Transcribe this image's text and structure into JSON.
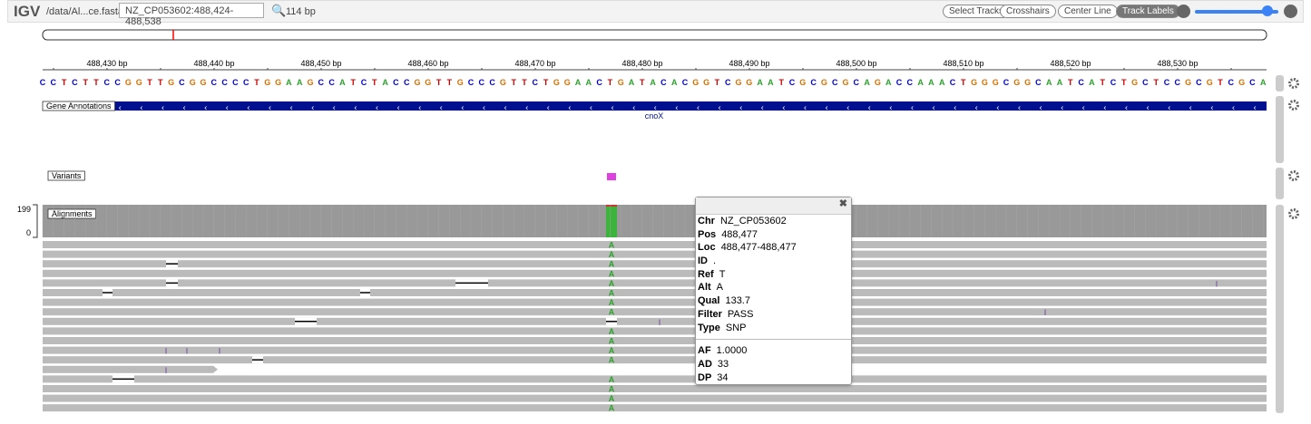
{
  "toolbar": {
    "logo": "IGV",
    "file": "/data/Al...ce.fasta",
    "locus": "NZ_CP053602:488,424-488,538",
    "width": "114 bp",
    "buttons": [
      "Select Tracks",
      "Crosshairs",
      "Center Line",
      "Track Labels"
    ]
  },
  "ruler": {
    "ticks": [
      "488,430 bp",
      "488,440 bp",
      "488,450 bp",
      "488,460 bp",
      "488,470 bp",
      "488,480 bp",
      "488,490 bp",
      "488,500 bp",
      "488,510 bp",
      "488,520 bp",
      "488,530 bp"
    ]
  },
  "sequence": "CCTCTTCCGGTTGCGGCCCCTGGAAGCCATCTACCGGTTGCCCGTTCTGGAACTGATACACGGTCGGAATCGCGCGCAGACCAAACTGGGCGGCAATCATCTGCTCCGCGTCGCA",
  "tracks": {
    "genes": {
      "label": "Gene Annotations",
      "gene": "cnoX"
    },
    "variants": {
      "label": "Variants"
    },
    "alignments": {
      "label": "Alignments",
      "scale_max": "199",
      "scale_min": "0",
      "alt_base": "A",
      "insertion": "I"
    }
  },
  "popup": {
    "rows": [
      [
        "Chr",
        "NZ_CP053602"
      ],
      [
        "Pos",
        "488,477"
      ],
      [
        "Loc",
        "488,477-488,477"
      ],
      [
        "ID",
        "."
      ],
      [
        "Ref",
        "T"
      ],
      [
        "Alt",
        "A"
      ],
      [
        "Qual",
        "133.7"
      ],
      [
        "Filter",
        "PASS"
      ],
      [
        "Type",
        "SNP"
      ]
    ],
    "info": [
      [
        "AF",
        "1.0000"
      ],
      [
        "AD",
        "33"
      ],
      [
        "DP",
        "34"
      ]
    ]
  }
}
